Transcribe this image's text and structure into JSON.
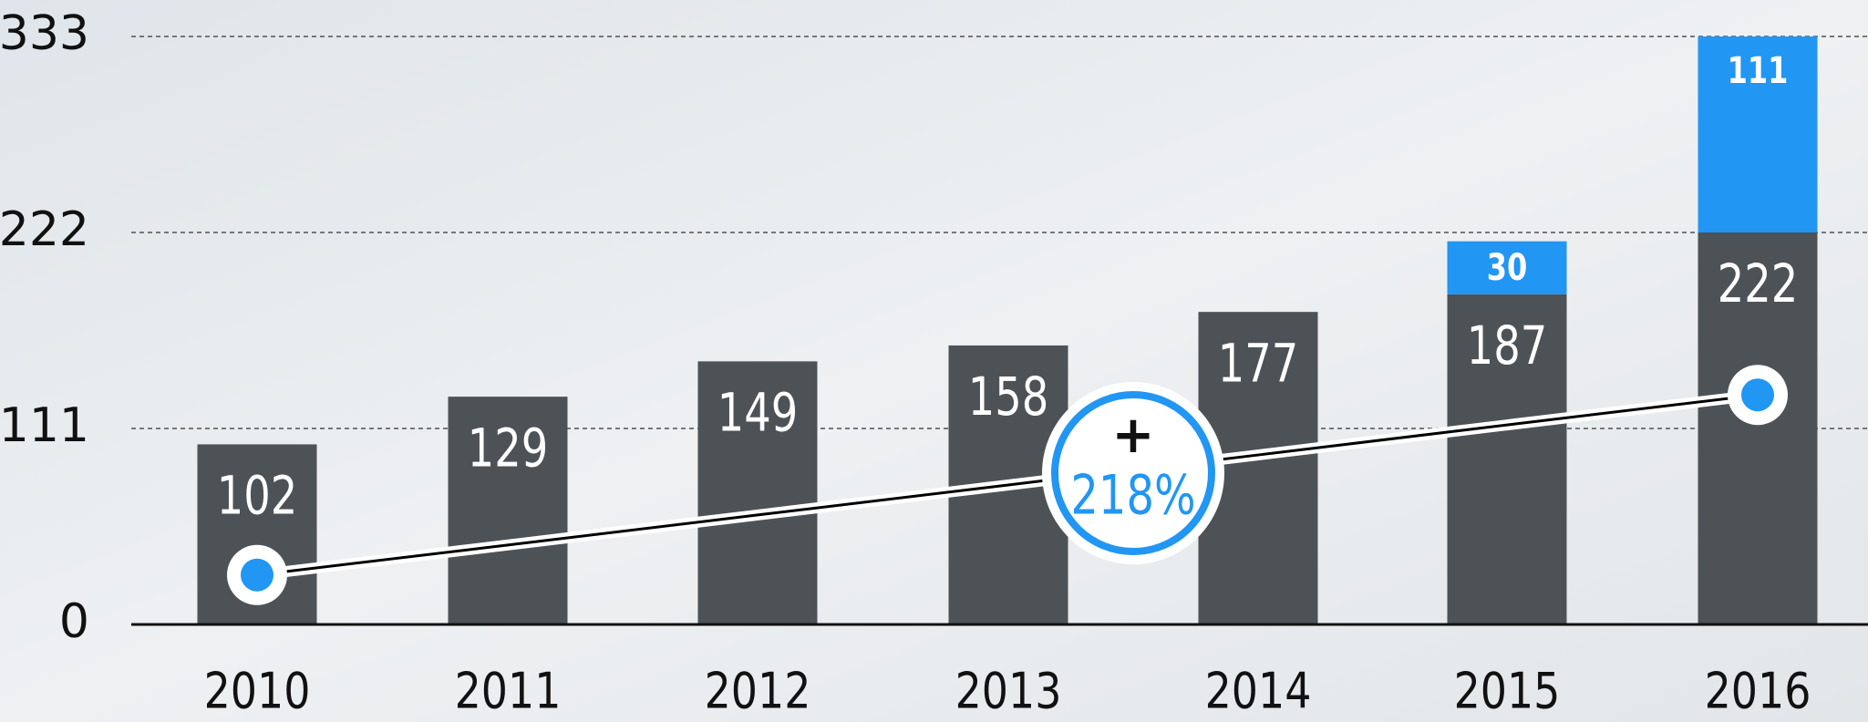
{
  "chart_data": {
    "type": "bar",
    "stacked": true,
    "categories": [
      "2010",
      "2011",
      "2012",
      "2013",
      "2014",
      "2015",
      "2016"
    ],
    "series": [
      {
        "color": "#4d5257",
        "values": [
          102,
          129,
          149,
          158,
          177,
          187,
          222
        ]
      },
      {
        "color": "#2196f3",
        "values": [
          null,
          null,
          null,
          null,
          null,
          30,
          111
        ]
      },
      {
        "type": "line",
        "color": "#000000",
        "marker_color": "#2196f3",
        "values": [
          28,
          45,
          62,
          79,
          96,
          113,
          130
        ]
      }
    ],
    "annotation": {
      "sign": "+",
      "text": "218%",
      "color": "#2196f3"
    },
    "ylim": [
      0,
      333
    ],
    "yticks": [
      0,
      111,
      222,
      333
    ],
    "grid": true
  }
}
